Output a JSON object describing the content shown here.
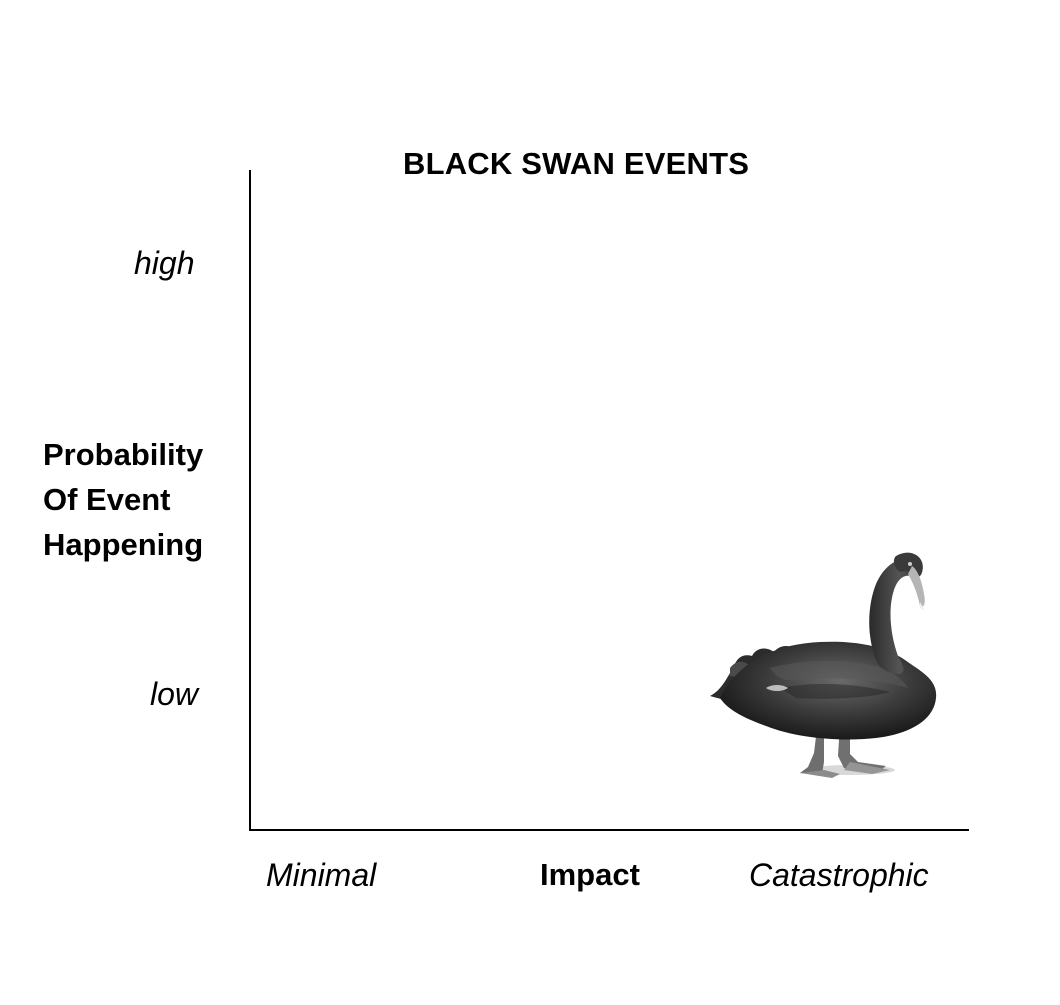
{
  "diagram": {
    "title": "BLACK SWAN EVENTS",
    "y_axis": {
      "title_lines": [
        "Probability",
        "Of Event",
        "Happening"
      ],
      "high_label": "high",
      "low_label": "low"
    },
    "x_axis": {
      "title": "Impact",
      "min_label": "Minimal",
      "max_label": "Catastrophic"
    },
    "illustration": {
      "icon": "black-swan-icon",
      "position": "low probability, catastrophic impact"
    }
  }
}
